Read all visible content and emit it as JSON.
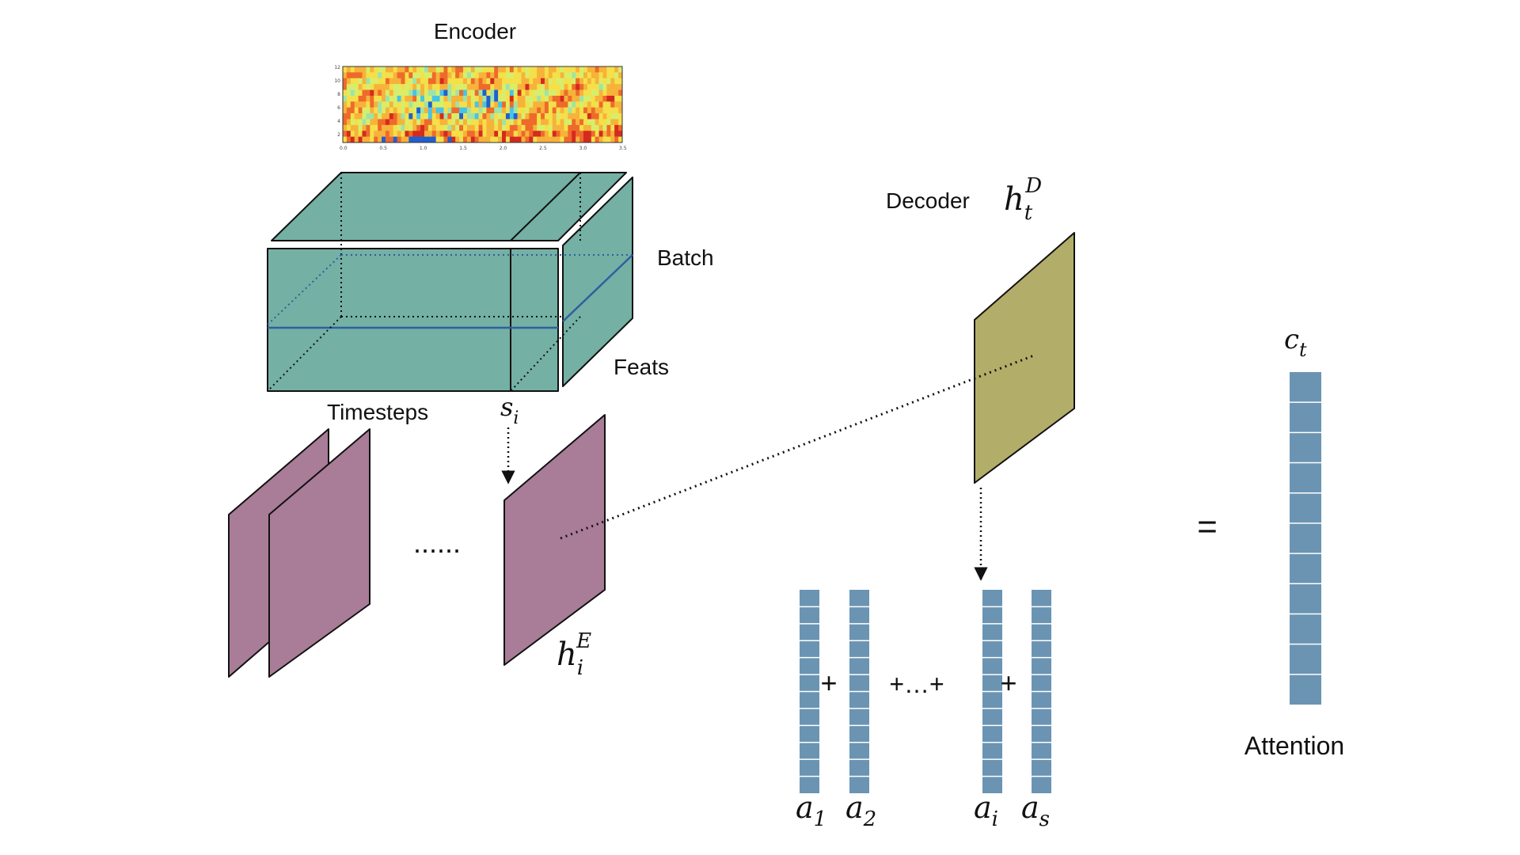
{
  "labels": {
    "encoder": "Encoder",
    "batch": "Batch",
    "feats": "Feats",
    "timesteps": "Timesteps",
    "decoder": "Decoder",
    "attention": "Attention",
    "ellipsis": "......",
    "plus": "+",
    "plus_dots_plus": "+…+",
    "equals": "="
  },
  "math": {
    "s_i": {
      "base": "s",
      "sub": "i"
    },
    "h_E": {
      "base": "h",
      "sub": "i",
      "sup": "E"
    },
    "h_D": {
      "base": "h",
      "sub": "t",
      "sup": "D"
    },
    "c_t": {
      "base": "c",
      "sub": "t"
    },
    "a_1": {
      "base": "a",
      "sub": "1"
    },
    "a_2": {
      "base": "a",
      "sub": "2"
    },
    "a_i": {
      "base": "a",
      "sub": "i"
    },
    "a_s": {
      "base": "a",
      "sub": "s"
    }
  },
  "spectrogram": {
    "x_ticks": [
      "0.0",
      "0.5",
      "1.0",
      "1.5",
      "2.0",
      "2.5",
      "3.0",
      "3.5"
    ],
    "y_ticks": [
      "2",
      "4",
      "6",
      "8",
      "10",
      "12"
    ]
  },
  "colors": {
    "tensor": "#74b0a4",
    "encoder_state": "#a97c97",
    "decoder_state": "#b3ad6a",
    "vector": "#6b94b3"
  }
}
